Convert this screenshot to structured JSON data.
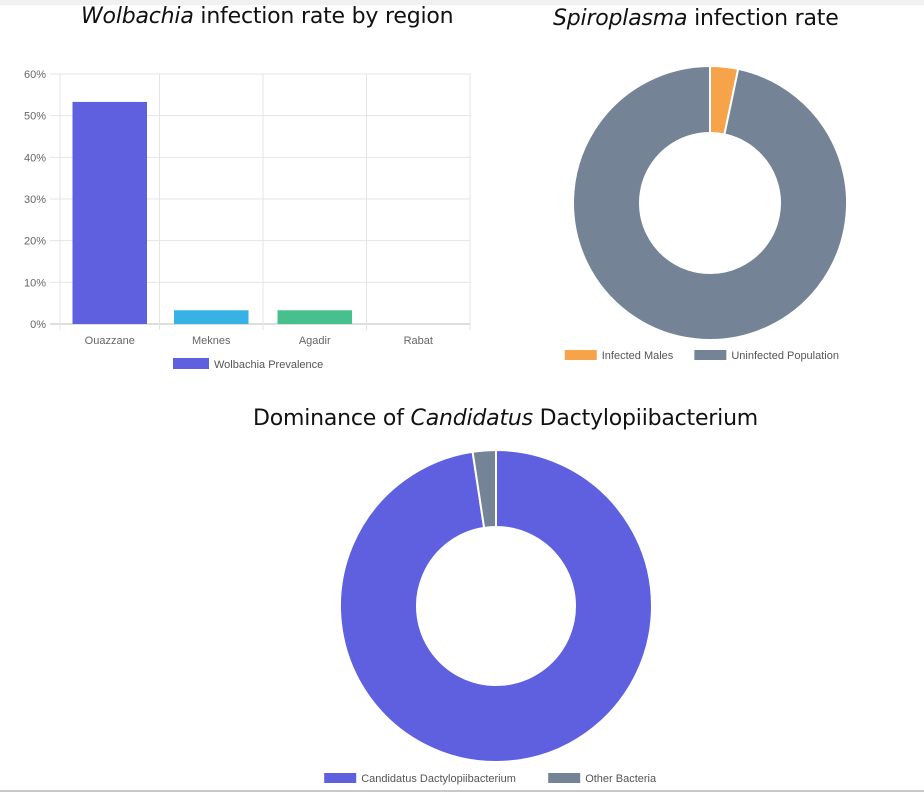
{
  "chart_data": [
    {
      "type": "bar",
      "title_italic": "Wolbachia",
      "title_rest": " infection rate by region",
      "categories": [
        "Ouazzane",
        "Meknes",
        "Agadir",
        "Rabat"
      ],
      "series": [
        {
          "name": "Wolbachia Prevalence",
          "values": [
            53.3,
            3.3,
            3.3,
            0
          ],
          "colors": [
            "#5E60E0",
            "#38B2E4",
            "#48C08E",
            "#F7A34A"
          ]
        }
      ],
      "legend": [
        {
          "label": "Wolbachia Prevalence",
          "color": "#5E60E0"
        }
      ],
      "legend_position": "bottom",
      "ylim": [
        0,
        60
      ],
      "yticks": [
        0,
        10,
        20,
        30,
        40,
        50,
        60
      ],
      "ytick_suffix": "%",
      "xlabel": "",
      "ylabel": "",
      "grid": true
    },
    {
      "type": "pie",
      "donut": true,
      "title_italic": "Spiroplasma",
      "title_rest": " infection rate",
      "labels": [
        "Infected Males",
        "Uninfected Population"
      ],
      "values": [
        3.3,
        96.7
      ],
      "colors": [
        "#F7A34A",
        "#748395"
      ],
      "legend_position": "bottom"
    },
    {
      "type": "pie",
      "donut": true,
      "title_prefix": "Dominance of ",
      "title_italic": "Candidatus",
      "title_rest": " Dactylopiibacterium",
      "labels": [
        "Candidatus Dactylopiibacterium",
        "Other Bacteria"
      ],
      "values": [
        97.6,
        2.4
      ],
      "colors": [
        "#5E60E0",
        "#748395"
      ],
      "legend_position": "bottom"
    }
  ]
}
